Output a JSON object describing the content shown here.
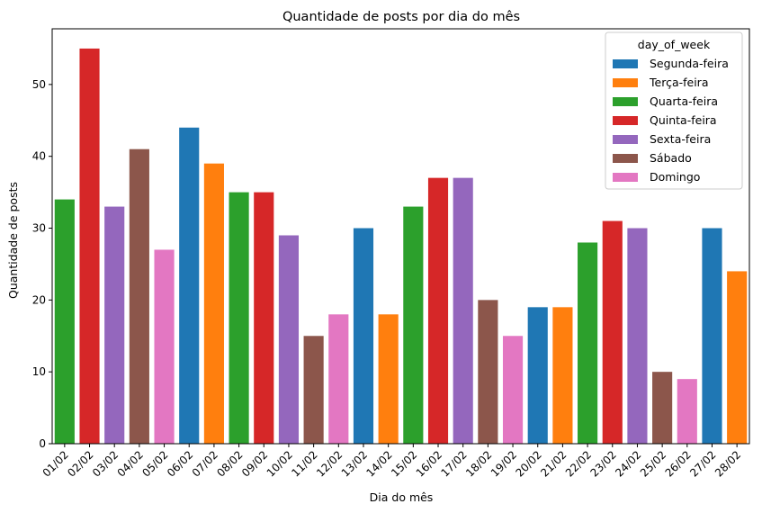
{
  "chart_data": {
    "type": "bar",
    "title": "Quantidade de posts por dia do mês",
    "xlabel": "Dia do mês",
    "ylabel": "Quantidade de posts",
    "ylim": [
      0,
      57.75
    ],
    "yticks": [
      0,
      10,
      20,
      30,
      40,
      50
    ],
    "grid": false,
    "categories": [
      "01/02",
      "02/02",
      "03/02",
      "04/02",
      "05/02",
      "06/02",
      "07/02",
      "08/02",
      "09/02",
      "10/02",
      "11/02",
      "12/02",
      "13/02",
      "14/02",
      "15/02",
      "16/02",
      "17/02",
      "18/02",
      "19/02",
      "20/02",
      "21/02",
      "22/02",
      "23/02",
      "24/02",
      "25/02",
      "26/02",
      "27/02",
      "28/02"
    ],
    "values": [
      34,
      55,
      33,
      41,
      27,
      44,
      39,
      35,
      35,
      29,
      15,
      18,
      30,
      18,
      33,
      37,
      37,
      20,
      15,
      19,
      19,
      28,
      31,
      30,
      10,
      9,
      30,
      24
    ],
    "day_of_week": [
      "Quarta-feira",
      "Quinta-feira",
      "Sexta-feira",
      "Sábado",
      "Domingo",
      "Segunda-feira",
      "Terça-feira",
      "Quarta-feira",
      "Quinta-feira",
      "Sexta-feira",
      "Sábado",
      "Domingo",
      "Segunda-feira",
      "Terça-feira",
      "Quarta-feira",
      "Quinta-feira",
      "Sexta-feira",
      "Sábado",
      "Domingo",
      "Segunda-feira",
      "Terça-feira",
      "Quarta-feira",
      "Quinta-feira",
      "Sexta-feira",
      "Sábado",
      "Domingo",
      "Segunda-feira",
      "Terça-feira"
    ],
    "legend": {
      "title": "day_of_week",
      "placement": "top-right",
      "entries": [
        {
          "name": "Segunda-feira",
          "color": "#1f77b4"
        },
        {
          "name": "Terça-feira",
          "color": "#ff7f0e"
        },
        {
          "name": "Quarta-feira",
          "color": "#2ca02c"
        },
        {
          "name": "Quinta-feira",
          "color": "#d62728"
        },
        {
          "name": "Sexta-feira",
          "color": "#9467bd"
        },
        {
          "name": "Sábado",
          "color": "#8c564b"
        },
        {
          "name": "Domingo",
          "color": "#e377c2"
        }
      ]
    }
  }
}
